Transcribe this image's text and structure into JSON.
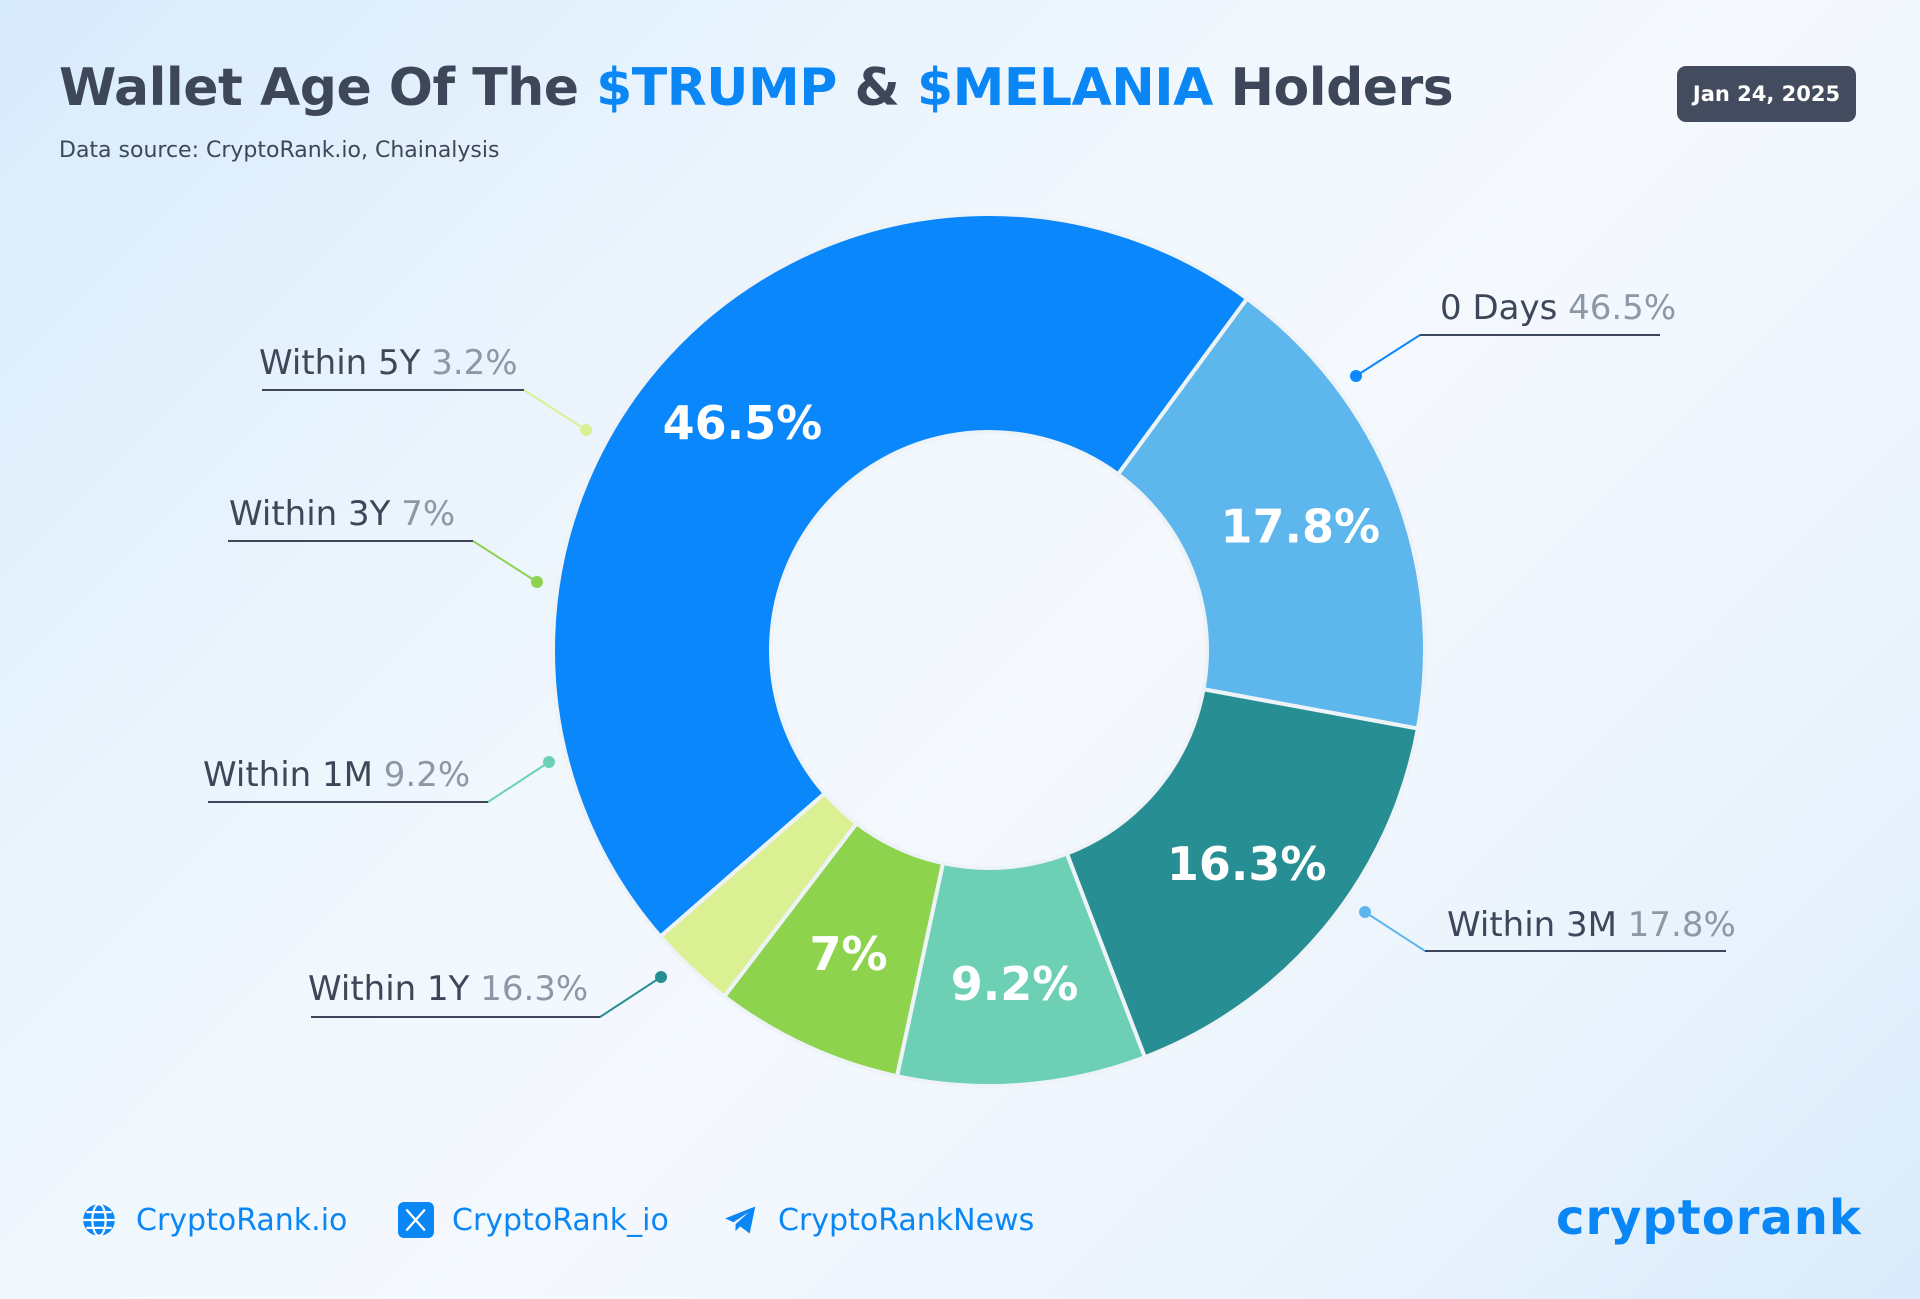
{
  "header": {
    "title_part1": "Wallet Age Of The ",
    "title_hl1": "$TRUMP",
    "title_part2": " & ",
    "title_hl2": "$MELANIA",
    "title_part3": " Holders",
    "subtitle": "Data source: CryptoRank.io, Chainalysis",
    "date": "Jan 24, 2025"
  },
  "chart_data": {
    "type": "pie",
    "donut": true,
    "slices": [
      {
        "name": "0 Days",
        "value": 46.5,
        "label": "46.5%",
        "legend_label": "0 Days",
        "legend_value": "46.5%",
        "color": "#0a87fa"
      },
      {
        "name": "Within 3M",
        "value": 17.8,
        "label": "17.8%",
        "legend_label": "Within 3M",
        "legend_value": "17.8%",
        "color": "#5db7ec"
      },
      {
        "name": "Within 1Y",
        "value": 16.3,
        "label": "16.3%",
        "legend_label": "Within 1Y",
        "legend_value": "16.3%",
        "color": "#278f93"
      },
      {
        "name": "Within 1M",
        "value": 9.2,
        "label": "9.2%",
        "legend_label": "Within 1M",
        "legend_value": "9.2%",
        "color": "#6dd0b4"
      },
      {
        "name": "Within 3Y",
        "value": 7,
        "label": "7%",
        "legend_label": "Within 3Y",
        "legend_value": "7%",
        "color": "#8dd34d"
      },
      {
        "name": "Within 5Y",
        "value": 3.2,
        "label": "",
        "legend_label": "Within 5Y",
        "legend_value": "3.2%",
        "color": "#dbef93"
      }
    ]
  },
  "footer": {
    "links": [
      {
        "label": "CryptoRank.io",
        "icon": "globe-icon"
      },
      {
        "label": "CryptoRank_io",
        "icon": "x-logo-icon"
      },
      {
        "label": "CryptoRankNews",
        "icon": "telegram-icon"
      }
    ],
    "brand": "cryptorank"
  },
  "colors": {
    "accent": "#0a87f5",
    "text_dark": "#3d4759",
    "text_muted": "#8e97a6",
    "badge_bg": "#434b5e"
  }
}
